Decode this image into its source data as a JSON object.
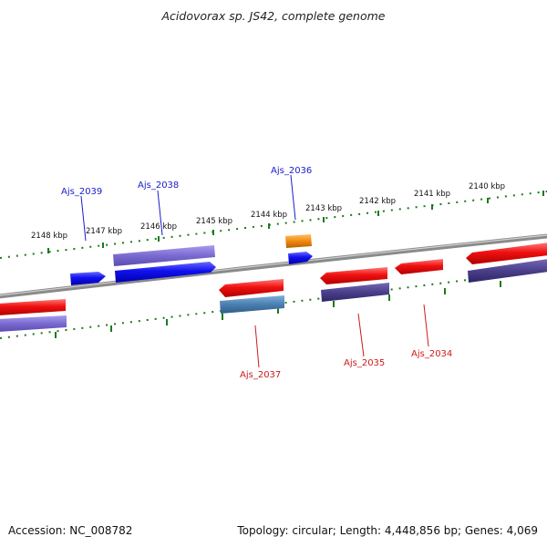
{
  "title": "Acidovorax sp. JS42, complete genome",
  "footer": {
    "accession": "Accession: NC_008782",
    "summary": "Topology: circular; Length: 4,448,856 bp; Genes: 4,069"
  },
  "colors": {
    "backbone": "#8a8a8a",
    "tick": "#1c7a1c",
    "label_forward": "#1a1acc",
    "label_reverse": "#cc1a1a",
    "cds_forward": "#1010ee",
    "cds_reverse": "#ee1111",
    "gene_forward": "#7a6ad0",
    "gene_reverse": "#4a3f8a",
    "rna": "#f08a10",
    "gene_teal": "#4a7fb0"
  },
  "ticks": {
    "labels": [
      "2148 kbp",
      "2147 kbp",
      "2146 kbp",
      "2145 kbp",
      "2144 kbp",
      "2143 kbp",
      "2142 kbp",
      "2141 kbp",
      "2140 kbp"
    ]
  },
  "gene_labels": [
    {
      "id": "Ajs_2039",
      "strand": "forward"
    },
    {
      "id": "Ajs_2038",
      "strand": "forward"
    },
    {
      "id": "Ajs_2036",
      "strand": "forward"
    },
    {
      "id": "Ajs_2037",
      "strand": "reverse"
    },
    {
      "id": "Ajs_2035",
      "strand": "reverse"
    },
    {
      "id": "Ajs_2034",
      "strand": "reverse"
    }
  ]
}
